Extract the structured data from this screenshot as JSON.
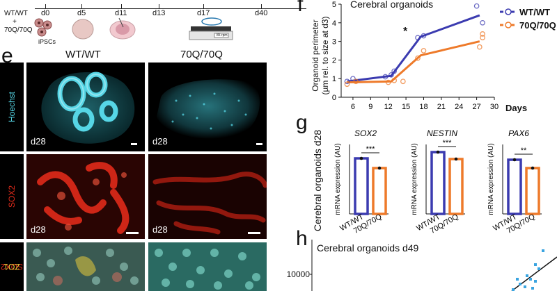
{
  "timeline": {
    "genotype_lines": [
      "WT/WT",
      "+",
      "70Q/70Q"
    ],
    "stage_label": "iPSCs",
    "days": [
      "d0",
      "d5",
      "d11",
      "d13",
      "d17",
      "d40"
    ],
    "shaker_tag": "85 rpm"
  },
  "panel_e": {
    "letter": "e",
    "col_wt": "WT/WT",
    "col_70q": "70Q/70Q",
    "row_labels": [
      "Hoechst",
      "SOX2",
      "SOX2",
      "ZO1"
    ],
    "day_tag": "d28"
  },
  "panel_f": {
    "letter": "f",
    "title": "Cerebral organoids",
    "ylabel_line1": "Organoid perimeter",
    "ylabel_line2": "(µm rel. to size at d3)",
    "xlabel": "Days",
    "significance": "*",
    "legend": [
      "WT/WT",
      "70Q/70Q"
    ]
  },
  "panel_g": {
    "letter": "g",
    "row_label": "Cerebral organoids d28",
    "ylabel": "mRNA expression (AU)",
    "sig": [
      "***",
      "***",
      "**"
    ]
  },
  "panel_h": {
    "letter": "h",
    "title": "Cerebral organoids d49",
    "y_tick": "10000"
  },
  "colors": {
    "wt": "#3b3bb0",
    "q70": "#ee7a2a",
    "hoechst": "#56d6e6",
    "sox2": "#e02a1a"
  },
  "chart_data": [
    {
      "type": "line",
      "title": "Cerebral organoids",
      "xlabel": "Days",
      "ylabel": "Organoid perimeter (µm rel. to size at d3)",
      "x_ticks": [
        6,
        9,
        12,
        15,
        18,
        21,
        24,
        27,
        30
      ],
      "y_ticks": [
        0,
        1,
        2,
        3,
        4,
        5
      ],
      "xlim": [
        4,
        30
      ],
      "ylim": [
        0,
        5
      ],
      "series": [
        {
          "name": "WT/WT",
          "x": [
            5,
            12.5,
            17.5,
            27.5
          ],
          "values": [
            0.85,
            1.15,
            3.25,
            4.4
          ],
          "points": [
            [
              5,
              0.85
            ],
            [
              6,
              1.0
            ],
            [
              11.5,
              1.1
            ],
            [
              12.5,
              1.2
            ],
            [
              13,
              1.4
            ],
            [
              17,
              3.2
            ],
            [
              18,
              3.3
            ],
            [
              27,
              4.9
            ],
            [
              28,
              4.0
            ]
          ]
        },
        {
          "name": "70Q/70Q",
          "x": [
            5,
            12.5,
            17.5,
            27.5
          ],
          "values": [
            0.8,
            0.85,
            2.25,
            3.0
          ],
          "points": [
            [
              5,
              0.7
            ],
            [
              6.5,
              0.85
            ],
            [
              12,
              0.8
            ],
            [
              13,
              0.9
            ],
            [
              14.5,
              0.85
            ],
            [
              17,
              2.1
            ],
            [
              18,
              2.5
            ],
            [
              27.5,
              2.7
            ],
            [
              28,
              3.2
            ],
            [
              28,
              3.4
            ]
          ]
        }
      ],
      "grid": false,
      "legend": "top-right"
    },
    {
      "type": "bar",
      "title": "SOX2",
      "categories": [
        "WT/WT",
        "70Q/70Q"
      ],
      "values": [
        0.8,
        0.66
      ],
      "ylabel": "mRNA expression (AU)",
      "significance": "***"
    },
    {
      "type": "bar",
      "title": "NESTIN",
      "categories": [
        "WT/WT",
        "70Q/70Q"
      ],
      "values": [
        0.89,
        0.79
      ],
      "ylabel": "mRNA expression (AU)",
      "significance": "***"
    },
    {
      "type": "bar",
      "title": "PAX6",
      "categories": [
        "WT/WT",
        "70Q/70Q"
      ],
      "values": [
        0.78,
        0.66
      ],
      "ylabel": "mRNA expression (AU)",
      "significance": "**"
    },
    {
      "type": "scatter",
      "title": "Cerebral organoids d49",
      "y_ticks": [
        10000
      ]
    }
  ]
}
